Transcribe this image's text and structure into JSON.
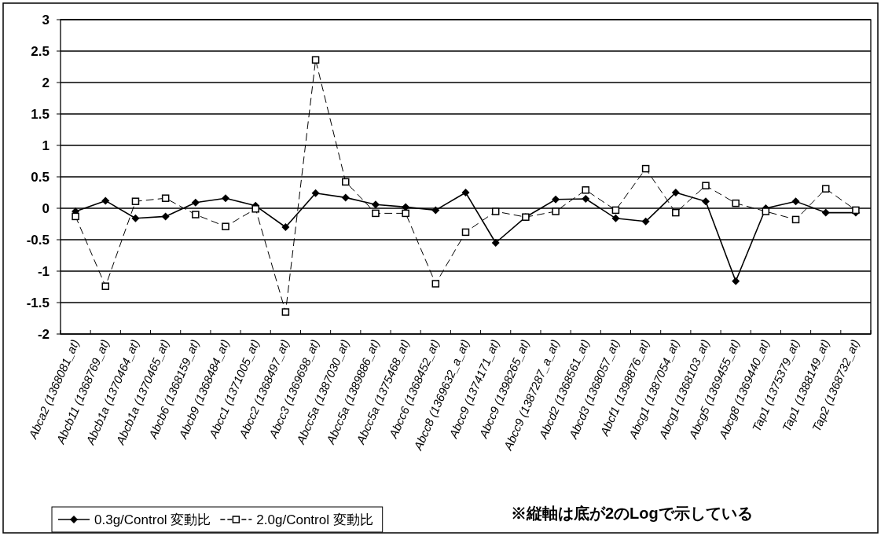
{
  "chart_data": {
    "type": "line",
    "categories": [
      "Abca2 (1368081_at)",
      "Abcb11 (1368769_at)",
      "Abcb1a (1370464_at)",
      "Abcb1a (1370465_at)",
      "Abcb6 (1368159_at)",
      "Abcb9 (1368484_at)",
      "Abcc1 (1371005_at)",
      "Abcc2 (1368497_at)",
      "Abcc3 (1369698_at)",
      "Abcc5a (1387030_at)",
      "Abcc5a (1389886_at)",
      "Abcc5a (1375468_at)",
      "Abcc6 (1368452_at)",
      "Abcc8 (1369632_a_at)",
      "Abcc9 (1374171_at)",
      "Abcc9 (1398265_at)",
      "Abcc9 (1387287_a_at)",
      "Abcd2 (1368561_at)",
      "Abcd3 (1368057_at)",
      "Abcf1 (1398876_at)",
      "Abcg1 (1387054_at)",
      "Abcg1 (1368103_at)",
      "Abcg5 (1369455_at)",
      "Abcg8 (1369440_at)",
      "Tap1 (1375379_at)",
      "Tap1 (1388149_at)",
      "Tap2 (1368732_at)"
    ],
    "series": [
      {
        "name": "0.3g/Control 変動比",
        "color": "#000000",
        "marker": "diamond",
        "line_style": "solid",
        "values": [
          -0.05,
          0.12,
          -0.16,
          -0.13,
          0.09,
          0.16,
          0.04,
          -0.3,
          0.24,
          0.17,
          0.06,
          0.02,
          -0.03,
          0.25,
          -0.55,
          -0.14,
          0.14,
          0.15,
          -0.16,
          -0.21,
          0.25,
          0.11,
          -1.16,
          0,
          0.11,
          -0.07,
          -0.07
        ]
      },
      {
        "name": "2.0g/Control 変動比",
        "color": "#000000",
        "marker": "square",
        "line_style": "dashed",
        "values": [
          -0.13,
          -1.24,
          0.11,
          0.16,
          -0.1,
          -0.29,
          -0.01,
          -1.65,
          2.36,
          0.42,
          -0.08,
          -0.08,
          -1.2,
          -0.38,
          -0.05,
          -0.14,
          -0.05,
          0.29,
          -0.03,
          0.63,
          -0.07,
          0.36,
          0.08,
          -0.05,
          -0.18,
          0.31,
          -0.03
        ]
      }
    ],
    "ylim": [
      -2,
      3
    ],
    "yticks": [
      {
        "value": -2,
        "label": "-2"
      },
      {
        "value": -1.5,
        "label": "-1.5"
      },
      {
        "value": -1,
        "label": "-1"
      },
      {
        "value": -0.5,
        "label": "-0.5"
      },
      0,
      0.5,
      1,
      1.5,
      2,
      2.5,
      3
    ],
    "grid": "y",
    "legend": "bottom left",
    "annotations": [
      "※縦軸は底が2のLogで示している"
    ]
  }
}
